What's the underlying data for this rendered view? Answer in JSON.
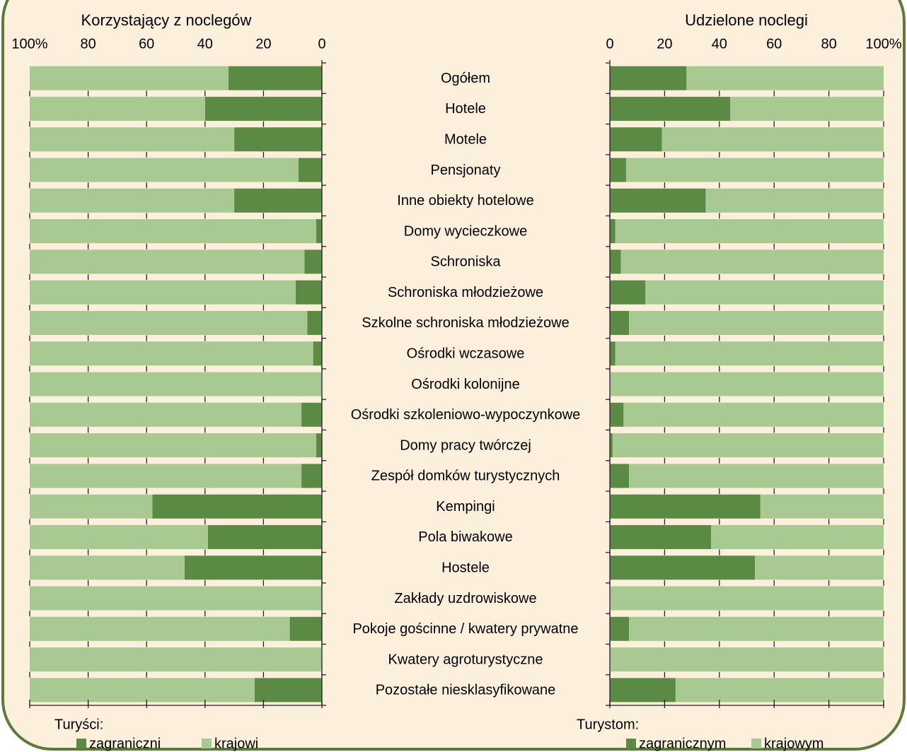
{
  "chart_data": [
    {
      "type": "bar",
      "stacked": true,
      "x_reversed": true,
      "title": "Korzystający z noclegów",
      "categories": [
        "Ogółem",
        "Hotele",
        "Motele",
        "Pensjonaty",
        "Inne obiekty hotelowe",
        "Domy wycieczkowe",
        "Schroniska",
        "Schroniska młodzieżowe",
        "Szkolne schroniska młodzieżowe",
        "Ośrodki wczasowe",
        "Ośrodki kolonijne",
        "Ośrodki szkoleniowo-wypoczynkowe",
        "Domy pracy twórczej",
        "Zespół domków turystycznych",
        "Kempingi",
        "Pola biwakowe",
        "Hostele",
        "Zakłady uzdrowiskowe",
        "Pokoje gościnne / kwatery prywatne",
        "Kwatery agroturystyczne",
        "Pozostałe niesklasyfikowane"
      ],
      "legend_title": "Turyści:",
      "series": [
        {
          "name": "zagraniczni",
          "color": "#5b8a45",
          "values": [
            32,
            40,
            30,
            8,
            30,
            2,
            6,
            9,
            5,
            3,
            0,
            7,
            2,
            7,
            58,
            39,
            47,
            0,
            11,
            0,
            23
          ]
        },
        {
          "name": "krajowi",
          "color": "#a9c993",
          "values": [
            68,
            60,
            70,
            92,
            70,
            98,
            94,
            91,
            95,
            97,
            100,
            93,
            98,
            93,
            42,
            61,
            53,
            100,
            89,
            100,
            77
          ]
        }
      ],
      "xlim": [
        0,
        100
      ],
      "xticks": [
        0,
        20,
        40,
        60,
        80,
        {
          "value": 100,
          "label": "100%"
        }
      ]
    },
    {
      "type": "bar",
      "stacked": true,
      "x_reversed": false,
      "title": "Udzielone noclegi",
      "legend_title": "Turystom:",
      "series": [
        {
          "name": "zagranicznym",
          "color": "#5b8a45",
          "values": [
            28,
            44,
            19,
            6,
            35,
            2,
            4,
            13,
            7,
            2,
            0,
            5,
            1,
            7,
            55,
            37,
            53,
            0,
            7,
            0,
            24
          ]
        },
        {
          "name": "krajowym",
          "color": "#a9c993",
          "values": [
            72,
            56,
            81,
            94,
            65,
            98,
            96,
            87,
            93,
            98,
            100,
            95,
            99,
            93,
            45,
            63,
            47,
            100,
            93,
            100,
            76
          ]
        }
      ],
      "xlim": [
        0,
        100
      ],
      "xticks": [
        0,
        20,
        40,
        60,
        80,
        {
          "value": 100,
          "label": "100%"
        }
      ]
    }
  ]
}
